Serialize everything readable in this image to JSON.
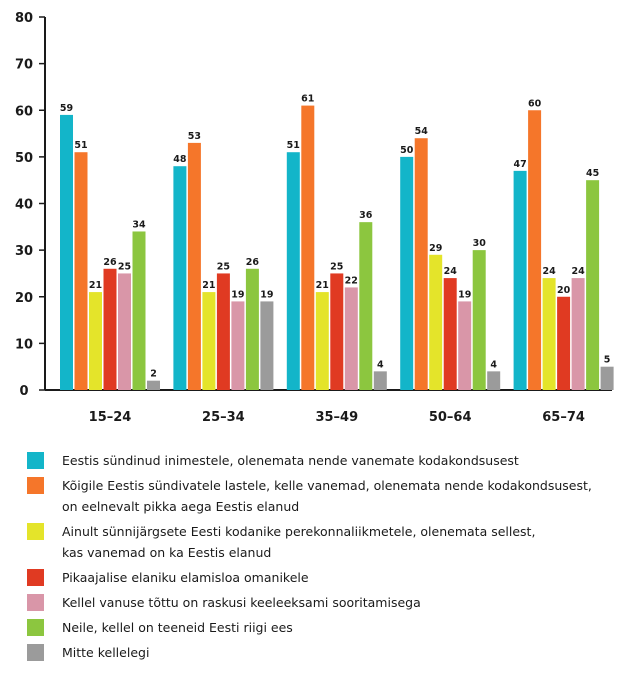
{
  "chart_data": {
    "type": "bar",
    "ylim": [
      0,
      80
    ],
    "yticks": [
      0,
      10,
      20,
      30,
      40,
      50,
      60,
      70,
      80
    ],
    "grid": false,
    "categories": [
      "15–24",
      "25–34",
      "35–49",
      "50–64",
      "65–74"
    ],
    "series": [
      {
        "name": "Eestis sündinud inimestele, olenemata nende vanemate kodakondsusest",
        "color": "#13b5c9",
        "values": [
          59,
          48,
          51,
          50,
          47
        ]
      },
      {
        "name": "Kõigile Eestis sündivatele lastele, kelle vanemad, olenemata nende kodakondsusest, on eelnevalt pikka aega Eestis elanud",
        "color": "#f5762a",
        "values": [
          51,
          53,
          61,
          54,
          60
        ]
      },
      {
        "name": "Ainult sünnijärgsete Eesti kodanike perekonnaliikmetele, olenemata sellest, kas vanemad on ka Eestis elanud",
        "color": "#e4e42a",
        "values": [
          21,
          21,
          21,
          29,
          24
        ]
      },
      {
        "name": "Pikaajalise elaniku elamisloa omanikele",
        "color": "#e03a22",
        "values": [
          26,
          25,
          25,
          24,
          20
        ]
      },
      {
        "name": "Kellel vanuse tõttu on raskusi keeleeksami sooritamisega",
        "color": "#d996a8",
        "values": [
          25,
          19,
          22,
          19,
          24
        ]
      },
      {
        "name": "Neile, kellel on teeneid Eesti riigi ees",
        "color": "#8cc63f",
        "values": [
          34,
          26,
          36,
          30,
          45
        ]
      },
      {
        "name": "Mitte kellelegi",
        "color": "#9b9b9b",
        "values": [
          2,
          19,
          4,
          4,
          5
        ]
      }
    ]
  },
  "legend": {
    "items": [
      {
        "line1": "Eestis sündinud inimestele, olenemata nende vanemate kodakondsusest",
        "line2": ""
      },
      {
        "line1": "Kõigile Eestis sündivatele lastele, kelle vanemad, olenemata nende kodakondsusest,",
        "line2": "on eelnevalt pikka aega Eestis elanud"
      },
      {
        "line1": "Ainult sünnijärgsete Eesti kodanike perekonnaliikmetele, olenemata sellest,",
        "line2": "kas vanemad on ka Eestis elanud"
      },
      {
        "line1": "Pikaajalise elaniku elamisloa omanikele",
        "line2": ""
      },
      {
        "line1": "Kellel vanuse tõttu on raskusi keeleeksami sooritamisega",
        "line2": ""
      },
      {
        "line1": "Neile, kellel on teeneid Eesti riigi ees",
        "line2": ""
      },
      {
        "line1": "Mitte kellelegi",
        "line2": ""
      }
    ]
  }
}
